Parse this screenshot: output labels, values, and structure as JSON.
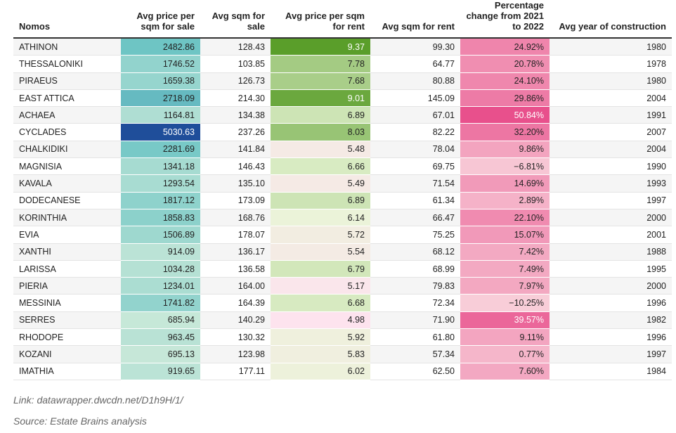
{
  "chart_data": {
    "type": "table",
    "columns": [
      "Nomos",
      "Avg price per sqm for sale",
      "Avg sqm for sale",
      "Avg price per sqm for rent",
      "Avg sqm for rent",
      "Percentage change from 2021 to 2022",
      "Avg year of construction"
    ],
    "rows": [
      [
        "ATHINON",
        "2482.86",
        "128.43",
        "9.37",
        "99.30",
        "24.92%",
        "1980"
      ],
      [
        "THESSALONIKI",
        "1746.52",
        "103.85",
        "7.78",
        "64.77",
        "20.78%",
        "1978"
      ],
      [
        "PIRAEUS",
        "1659.38",
        "126.73",
        "7.68",
        "80.88",
        "24.10%",
        "1980"
      ],
      [
        "EAST ATTICA",
        "2718.09",
        "214.30",
        "9.01",
        "145.09",
        "29.86%",
        "2004"
      ],
      [
        "ACHAEA",
        "1164.81",
        "134.38",
        "6.89",
        "67.01",
        "50.84%",
        "1991"
      ],
      [
        "CYCLADES",
        "5030.63",
        "237.26",
        "8.03",
        "82.22",
        "32.20%",
        "2007"
      ],
      [
        "CHALKIDIKI",
        "2281.69",
        "141.84",
        "5.48",
        "78.04",
        "9.86%",
        "2004"
      ],
      [
        "MAGNISIA",
        "1341.18",
        "146.43",
        "6.66",
        "69.75",
        "−6.81%",
        "1990"
      ],
      [
        "KAVALA",
        "1293.54",
        "135.10",
        "5.49",
        "71.54",
        "14.69%",
        "1993"
      ],
      [
        "DODECANESE",
        "1817.12",
        "173.09",
        "6.89",
        "61.34",
        "2.89%",
        "1997"
      ],
      [
        "KORINTHIA",
        "1858.83",
        "168.76",
        "6.14",
        "66.47",
        "22.10%",
        "2000"
      ],
      [
        "EVIA",
        "1506.89",
        "178.07",
        "5.72",
        "75.25",
        "15.07%",
        "2001"
      ],
      [
        "XANTHI",
        "914.09",
        "136.17",
        "5.54",
        "68.12",
        "7.42%",
        "1988"
      ],
      [
        "LARISSA",
        "1034.28",
        "136.58",
        "6.79",
        "68.99",
        "7.49%",
        "1995"
      ],
      [
        "PIERIA",
        "1234.01",
        "164.00",
        "5.17",
        "79.83",
        "7.97%",
        "2000"
      ],
      [
        "MESSINIA",
        "1741.82",
        "164.39",
        "6.68",
        "72.34",
        "−10.25%",
        "1996"
      ],
      [
        "SERRES",
        "685.94",
        "140.29",
        "4.98",
        "71.90",
        "39.57%",
        "1982"
      ],
      [
        "RHODOPE",
        "963.45",
        "130.32",
        "5.92",
        "61.80",
        "9.11%",
        "1996"
      ],
      [
        "KOZANI",
        "695.13",
        "123.98",
        "5.83",
        "57.34",
        "0.77%",
        "1997"
      ],
      [
        "IMATHIA",
        "919.65",
        "177.11",
        "6.02",
        "62.50",
        "7.60%",
        "1984"
      ]
    ],
    "color_scales": {
      "sale_price": {
        "low": "#e8f5e0",
        "mid": "#6cc4c4",
        "high": "#1f4e9a",
        "max": 5030.63
      },
      "rent_price": {
        "low": "#fde3ee",
        "mid": "#e9f5d6",
        "high": "#5a9e2a",
        "min": 4.98,
        "max": 9.37
      },
      "pct_change": {
        "low": "#f8cdd8",
        "high": "#e8508c",
        "min": -10.25,
        "max": 50.84
      }
    }
  },
  "footer": {
    "link": "Link: datawrapper.dwcdn.net/D1h9H/1/",
    "source": "Source: Estate Brains analysis"
  }
}
